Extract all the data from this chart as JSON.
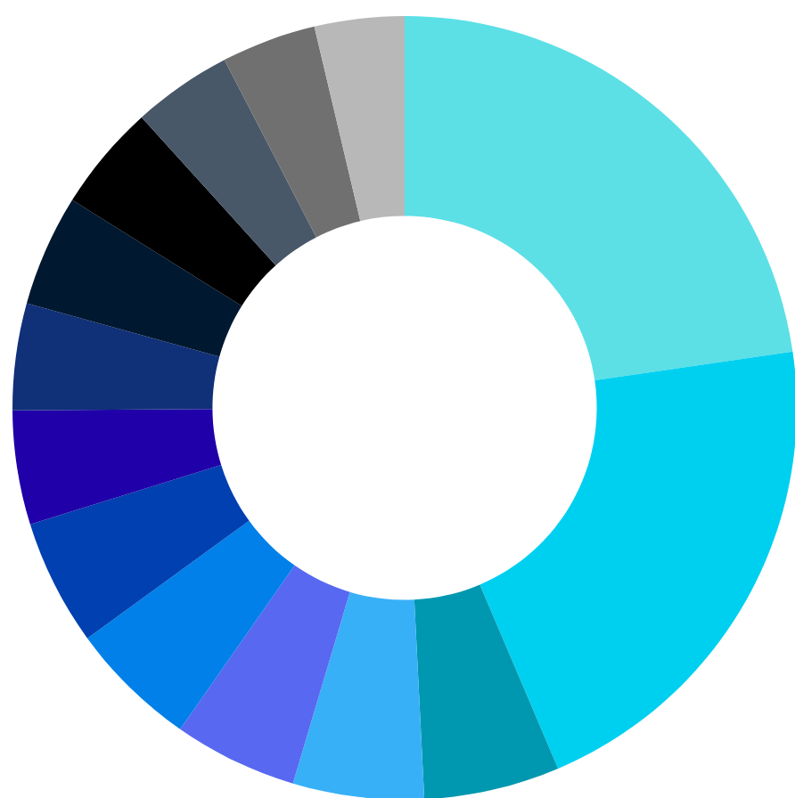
{
  "chart_data": {
    "type": "donut",
    "categories": [
      null,
      null,
      null,
      null,
      null,
      null,
      null,
      null,
      null,
      null,
      null,
      null,
      null,
      null
    ],
    "values": [
      22.7,
      20.9,
      5.6,
      5.4,
      5.1,
      5.3,
      5.2,
      4.7,
      4.4,
      4.6,
      4.4,
      4.1,
      3.9,
      3.7
    ],
    "colors": [
      "#5ce0e6",
      "#00d0f0",
      "#0098b0",
      "#38b0f8",
      "#5868f0",
      "#0080e8",
      "#0040b0",
      "#2000a8",
      "#103078",
      "#001830",
      "#000000",
      "#485868",
      "#707070",
      "#b8b8b8"
    ]
  }
}
